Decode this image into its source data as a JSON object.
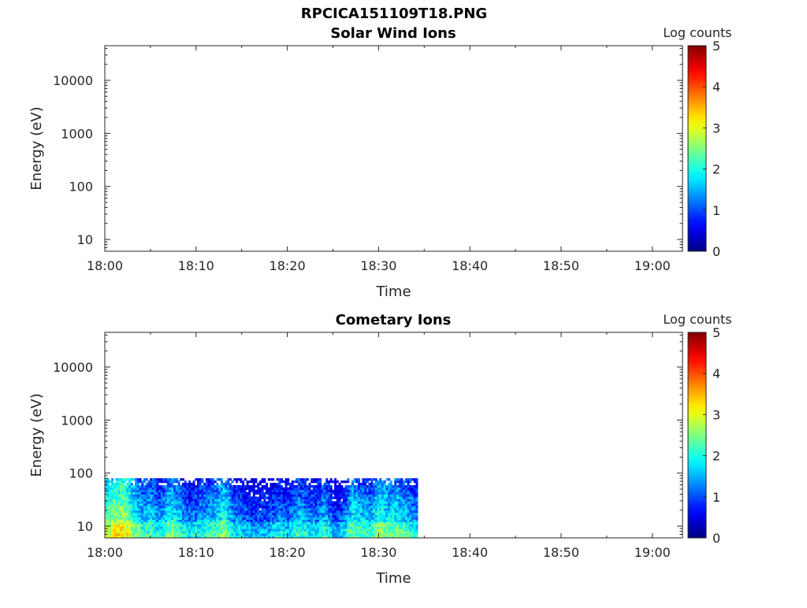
{
  "figure": {
    "title": "RPCICA151109T18.PNG"
  },
  "chart_data": [
    {
      "type": "heatmap",
      "title": "Solar Wind Ions",
      "xlabel": "Time",
      "ylabel": "Energy (eV)",
      "x_ticks": [
        "18:00",
        "18:10",
        "18:20",
        "18:30",
        "18:40",
        "18:50",
        "19:00"
      ],
      "y_scale": "log",
      "y_ticks": [
        10,
        100,
        1000,
        10000
      ],
      "y_tick_labels": [
        "10",
        "100",
        "1000",
        "10000"
      ],
      "ylim": [
        6,
        45000
      ],
      "xlim_minutes": [
        0,
        63.3
      ],
      "colorbar": {
        "label": "Log counts",
        "range": [
          0,
          5
        ],
        "ticks": [
          "0",
          "1",
          "2",
          "3",
          "4",
          "5"
        ],
        "colormap": "jet"
      },
      "data_extent": null
    },
    {
      "type": "heatmap",
      "title": "Cometary Ions",
      "xlabel": "Time",
      "ylabel": "Energy (eV)",
      "x_ticks": [
        "18:00",
        "18:10",
        "18:20",
        "18:30",
        "18:40",
        "18:50",
        "19:00"
      ],
      "y_scale": "log",
      "y_ticks": [
        10,
        100,
        1000,
        10000
      ],
      "y_tick_labels": [
        "10",
        "100",
        "1000",
        "10000"
      ],
      "ylim": [
        6,
        45000
      ],
      "xlim_minutes": [
        0,
        63.3
      ],
      "colorbar": {
        "label": "Log counts",
        "range": [
          0,
          5
        ],
        "ticks": [
          "0",
          "1",
          "2",
          "3",
          "4",
          "5"
        ],
        "colormap": "jet"
      },
      "data_extent": {
        "time_start": "18:00",
        "time_end": "18:34",
        "energy_min_eV": 6,
        "energy_max_eV": 80
      },
      "intensity_profile": [
        {
          "t": 0.0,
          "v": 2.6
        },
        {
          "t": 1.0,
          "v": 2.9
        },
        {
          "t": 2.0,
          "v": 3.0
        },
        {
          "t": 3.0,
          "v": 2.4
        },
        {
          "t": 4.0,
          "v": 1.9
        },
        {
          "t": 5.0,
          "v": 2.0
        },
        {
          "t": 6.0,
          "v": 1.7
        },
        {
          "t": 7.0,
          "v": 2.3
        },
        {
          "t": 8.0,
          "v": 2.0
        },
        {
          "t": 9.0,
          "v": 1.5
        },
        {
          "t": 10.0,
          "v": 1.7
        },
        {
          "t": 11.0,
          "v": 1.8
        },
        {
          "t": 12.0,
          "v": 2.0
        },
        {
          "t": 13.0,
          "v": 2.4
        },
        {
          "t": 14.0,
          "v": 1.6
        },
        {
          "t": 15.0,
          "v": 1.5
        },
        {
          "t": 16.0,
          "v": 1.3
        },
        {
          "t": 17.0,
          "v": 1.3
        },
        {
          "t": 18.0,
          "v": 1.4
        },
        {
          "t": 19.0,
          "v": 1.6
        },
        {
          "t": 20.0,
          "v": 1.4
        },
        {
          "t": 21.0,
          "v": 1.9
        },
        {
          "t": 22.0,
          "v": 1.7
        },
        {
          "t": 23.0,
          "v": 1.5
        },
        {
          "t": 24.0,
          "v": 2.0
        },
        {
          "t": 25.0,
          "v": 1.2
        },
        {
          "t": 26.0,
          "v": 1.4
        },
        {
          "t": 27.0,
          "v": 2.2
        },
        {
          "t": 28.0,
          "v": 2.0
        },
        {
          "t": 29.0,
          "v": 1.8
        },
        {
          "t": 30.0,
          "v": 2.5
        },
        {
          "t": 31.0,
          "v": 2.1
        },
        {
          "t": 32.0,
          "v": 2.2
        },
        {
          "t": 33.0,
          "v": 1.9
        },
        {
          "t": 34.0,
          "v": 1.7
        }
      ]
    }
  ]
}
